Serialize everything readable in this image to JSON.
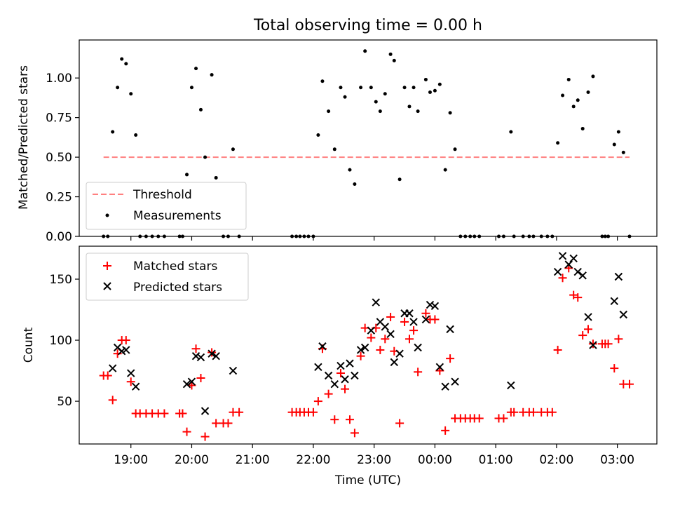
{
  "chart_data": [
    {
      "type": "scatter",
      "title": "Total observing time = 0.00 h",
      "ylabel": "Matched/Predicted stars",
      "xlabel": "",
      "xlim": [
        18.15,
        27.65
      ],
      "ylim": [
        0,
        1.24
      ],
      "yticks": [
        0.0,
        0.25,
        0.5,
        0.75,
        1.0
      ],
      "ytick_labels": [
        "0.00",
        "0.25",
        "0.50",
        "0.75",
        "1.00"
      ],
      "grid": false,
      "legend_position": "lower-left",
      "legend": [
        "Threshold",
        "Measurements"
      ],
      "threshold": {
        "name": "Threshold",
        "y": 0.5,
        "x_range": [
          18.55,
          27.2
        ],
        "color": "#ff8080",
        "style": "dashed"
      },
      "series": [
        {
          "name": "Measurements",
          "marker": "dot",
          "color": "#000000",
          "points": [
            [
              18.55,
              0
            ],
            [
              18.62,
              0
            ],
            [
              18.7,
              0.66
            ],
            [
              18.78,
              0.94
            ],
            [
              18.85,
              1.12
            ],
            [
              18.92,
              1.09
            ],
            [
              19.0,
              0.9
            ],
            [
              19.08,
              0.64
            ],
            [
              19.15,
              0
            ],
            [
              19.25,
              0
            ],
            [
              19.35,
              0
            ],
            [
              19.45,
              0
            ],
            [
              19.55,
              0
            ],
            [
              19.8,
              0
            ],
            [
              19.85,
              0
            ],
            [
              19.92,
              0.39
            ],
            [
              20.0,
              0.94
            ],
            [
              20.07,
              1.06
            ],
            [
              20.15,
              0.8
            ],
            [
              20.22,
              0.5
            ],
            [
              20.33,
              1.02
            ],
            [
              20.4,
              0.37
            ],
            [
              20.52,
              0
            ],
            [
              20.6,
              0
            ],
            [
              20.68,
              0.55
            ],
            [
              20.78,
              0
            ],
            [
              21.65,
              0
            ],
            [
              21.72,
              0
            ],
            [
              21.78,
              0
            ],
            [
              21.85,
              0
            ],
            [
              21.92,
              0
            ],
            [
              22.0,
              0
            ],
            [
              22.08,
              0.64
            ],
            [
              22.15,
              0.98
            ],
            [
              22.25,
              0.79
            ],
            [
              22.35,
              0.55
            ],
            [
              22.45,
              0.94
            ],
            [
              22.52,
              0.88
            ],
            [
              22.6,
              0.42
            ],
            [
              22.68,
              0.33
            ],
            [
              22.78,
              0.94
            ],
            [
              22.85,
              1.17
            ],
            [
              22.95,
              0.94
            ],
            [
              23.03,
              0.85
            ],
            [
              23.1,
              0.79
            ],
            [
              23.18,
              0.9
            ],
            [
              23.27,
              1.15
            ],
            [
              23.33,
              1.11
            ],
            [
              23.42,
              0.36
            ],
            [
              23.5,
              0.94
            ],
            [
              23.58,
              0.82
            ],
            [
              23.65,
              0.94
            ],
            [
              23.72,
              0.79
            ],
            [
              23.85,
              0.99
            ],
            [
              23.92,
              0.91
            ],
            [
              24.0,
              0.92
            ],
            [
              24.08,
              0.96
            ],
            [
              24.17,
              0.42
            ],
            [
              24.25,
              0.78
            ],
            [
              24.33,
              0.55
            ],
            [
              24.42,
              0
            ],
            [
              24.5,
              0
            ],
            [
              24.58,
              0
            ],
            [
              24.65,
              0
            ],
            [
              24.73,
              0
            ],
            [
              25.05,
              0
            ],
            [
              25.13,
              0
            ],
            [
              25.25,
              0.66
            ],
            [
              25.3,
              0
            ],
            [
              25.45,
              0
            ],
            [
              25.55,
              0
            ],
            [
              25.62,
              0
            ],
            [
              25.75,
              0
            ],
            [
              25.85,
              0
            ],
            [
              25.93,
              0
            ],
            [
              26.02,
              0.59
            ],
            [
              26.1,
              0.89
            ],
            [
              26.2,
              0.99
            ],
            [
              26.28,
              0.82
            ],
            [
              26.35,
              0.86
            ],
            [
              26.43,
              0.68
            ],
            [
              26.52,
              0.91
            ],
            [
              26.6,
              1.01
            ],
            [
              26.75,
              0
            ],
            [
              26.8,
              0
            ],
            [
              26.85,
              0
            ],
            [
              26.95,
              0.58
            ],
            [
              27.02,
              0.66
            ],
            [
              27.1,
              0.53
            ],
            [
              27.2,
              0
            ]
          ]
        }
      ]
    },
    {
      "type": "scatter",
      "title": "",
      "ylabel": "Count",
      "xlabel": "Time (UTC)",
      "xlim": [
        18.15,
        27.65
      ],
      "ylim": [
        15,
        177
      ],
      "yticks": [
        50,
        100,
        150
      ],
      "ytick_labels": [
        "50",
        "100",
        "150"
      ],
      "xticks": [
        19,
        20,
        21,
        22,
        23,
        24,
        25,
        26,
        27
      ],
      "xtick_labels": [
        "19:00",
        "20:00",
        "21:00",
        "22:00",
        "23:00",
        "00:00",
        "01:00",
        "02:00",
        "03:00"
      ],
      "grid": false,
      "legend_position": "upper-left",
      "legend": [
        "Matched stars",
        "Predicted stars"
      ],
      "series": [
        {
          "name": "Matched stars",
          "marker": "plus",
          "color": "#ff0000",
          "points": [
            [
              18.55,
              71
            ],
            [
              18.62,
              71
            ],
            [
              18.7,
              51
            ],
            [
              18.78,
              89
            ],
            [
              18.85,
              100
            ],
            [
              18.92,
              100
            ],
            [
              19.0,
              66
            ],
            [
              19.08,
              40
            ],
            [
              19.15,
              40
            ],
            [
              19.25,
              40
            ],
            [
              19.35,
              40
            ],
            [
              19.45,
              40
            ],
            [
              19.55,
              40
            ],
            [
              19.8,
              40
            ],
            [
              19.85,
              40
            ],
            [
              19.92,
              25
            ],
            [
              20.0,
              63
            ],
            [
              20.07,
              93
            ],
            [
              20.15,
              69
            ],
            [
              20.22,
              21
            ],
            [
              20.33,
              90
            ],
            [
              20.4,
              32
            ],
            [
              20.52,
              32
            ],
            [
              20.6,
              32
            ],
            [
              20.68,
              41
            ],
            [
              20.78,
              41
            ],
            [
              21.65,
              41
            ],
            [
              21.72,
              41
            ],
            [
              21.78,
              41
            ],
            [
              21.85,
              41
            ],
            [
              21.92,
              41
            ],
            [
              22.0,
              41
            ],
            [
              22.08,
              50
            ],
            [
              22.15,
              93
            ],
            [
              22.25,
              56
            ],
            [
              22.35,
              35
            ],
            [
              22.45,
              73
            ],
            [
              22.52,
              60
            ],
            [
              22.6,
              35
            ],
            [
              22.68,
              24
            ],
            [
              22.78,
              87
            ],
            [
              22.85,
              110
            ],
            [
              22.95,
              102
            ],
            [
              23.03,
              110
            ],
            [
              23.1,
              92
            ],
            [
              23.18,
              101
            ],
            [
              23.27,
              119
            ],
            [
              23.33,
              91
            ],
            [
              23.42,
              32
            ],
            [
              23.5,
              115
            ],
            [
              23.58,
              101
            ],
            [
              23.65,
              108
            ],
            [
              23.72,
              74
            ],
            [
              23.85,
              122
            ],
            [
              23.92,
              117
            ],
            [
              24.0,
              117
            ],
            [
              24.08,
              75
            ],
            [
              24.17,
              26
            ],
            [
              24.25,
              85
            ],
            [
              24.33,
              36
            ],
            [
              24.42,
              36
            ],
            [
              24.5,
              36
            ],
            [
              24.58,
              36
            ],
            [
              24.65,
              36
            ],
            [
              24.73,
              36
            ],
            [
              25.05,
              36
            ],
            [
              25.13,
              36
            ],
            [
              25.25,
              41
            ],
            [
              25.3,
              41
            ],
            [
              25.45,
              41
            ],
            [
              25.55,
              41
            ],
            [
              25.62,
              41
            ],
            [
              25.75,
              41
            ],
            [
              25.85,
              41
            ],
            [
              25.93,
              41
            ],
            [
              26.02,
              92
            ],
            [
              26.1,
              151
            ],
            [
              26.2,
              159
            ],
            [
              26.28,
              137
            ],
            [
              26.35,
              135
            ],
            [
              26.43,
              104
            ],
            [
              26.52,
              109
            ],
            [
              26.6,
              97
            ],
            [
              26.75,
              97
            ],
            [
              26.8,
              97
            ],
            [
              26.85,
              97
            ],
            [
              26.95,
              77
            ],
            [
              27.02,
              101
            ],
            [
              27.1,
              64
            ],
            [
              27.2,
              64
            ]
          ]
        },
        {
          "name": "Predicted stars",
          "marker": "x",
          "color": "#000000",
          "points": [
            [
              18.7,
              77
            ],
            [
              18.78,
              94
            ],
            [
              18.85,
              91
            ],
            [
              18.92,
              92
            ],
            [
              19.0,
              73
            ],
            [
              19.08,
              62
            ],
            [
              19.92,
              64
            ],
            [
              20.0,
              66
            ],
            [
              20.07,
              87
            ],
            [
              20.15,
              86
            ],
            [
              20.22,
              42
            ],
            [
              20.33,
              89
            ],
            [
              20.4,
              87
            ],
            [
              20.68,
              75
            ],
            [
              22.08,
              78
            ],
            [
              22.15,
              95
            ],
            [
              22.25,
              71
            ],
            [
              22.35,
              64
            ],
            [
              22.45,
              79
            ],
            [
              22.52,
              68
            ],
            [
              22.6,
              81
            ],
            [
              22.68,
              71
            ],
            [
              22.78,
              92
            ],
            [
              22.85,
              94
            ],
            [
              22.95,
              108
            ],
            [
              23.03,
              131
            ],
            [
              23.1,
              115
            ],
            [
              23.18,
              111
            ],
            [
              23.27,
              105
            ],
            [
              23.33,
              82
            ],
            [
              23.42,
              89
            ],
            [
              23.5,
              122
            ],
            [
              23.58,
              122
            ],
            [
              23.65,
              115
            ],
            [
              23.72,
              94
            ],
            [
              23.85,
              117
            ],
            [
              23.92,
              129
            ],
            [
              24.0,
              128
            ],
            [
              24.08,
              78
            ],
            [
              24.17,
              62
            ],
            [
              24.25,
              109
            ],
            [
              24.33,
              66
            ],
            [
              25.25,
              63
            ],
            [
              26.02,
              156
            ],
            [
              26.1,
              169
            ],
            [
              26.2,
              162
            ],
            [
              26.28,
              167
            ],
            [
              26.35,
              156
            ],
            [
              26.43,
              153
            ],
            [
              26.52,
              119
            ],
            [
              26.6,
              96
            ],
            [
              26.95,
              132
            ],
            [
              27.02,
              152
            ],
            [
              27.1,
              121
            ]
          ]
        }
      ]
    }
  ]
}
